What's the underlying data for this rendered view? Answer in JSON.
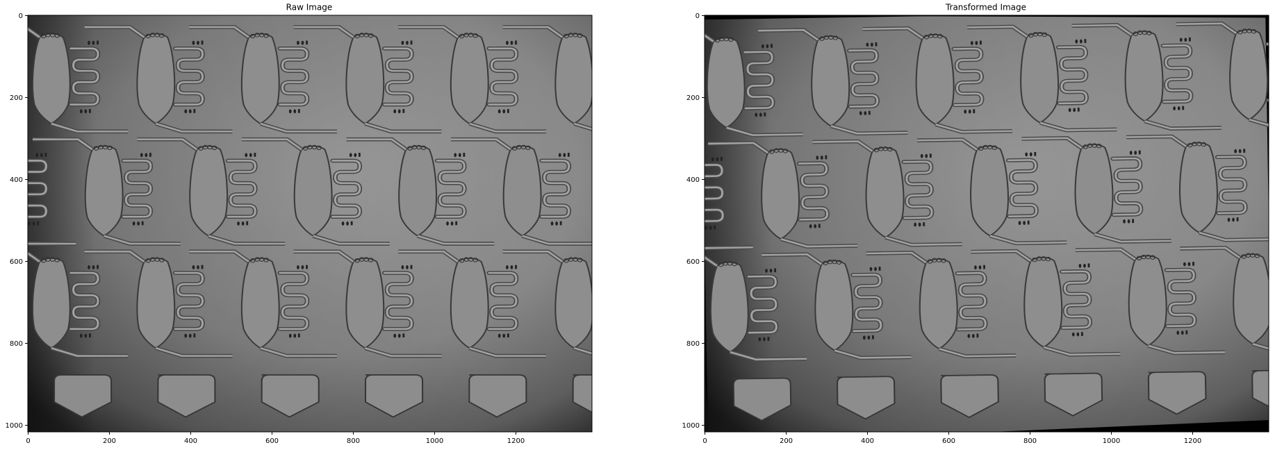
{
  "figure": {
    "panels": [
      {
        "id": "raw",
        "title": "Raw Image",
        "x_ticks": [
          "0",
          "200",
          "400",
          "600",
          "800",
          "1000",
          "1200"
        ],
        "y_ticks": [
          "0",
          "200",
          "400",
          "600",
          "800",
          "1000"
        ],
        "image_description": "grayscale brightfield micrograph of microfluidic chip with oval chambers connected by serpentine channels",
        "colors": {
          "image_base": "#7f7f7f",
          "dark_edge": "#2a2a2a",
          "channel": "#454545"
        }
      },
      {
        "id": "transformed",
        "title": "Transformed Image",
        "x_ticks": [
          "0",
          "200",
          "400",
          "600",
          "800",
          "1000",
          "1200"
        ],
        "y_ticks": [
          "0",
          "200",
          "400",
          "600",
          "800",
          "1000"
        ],
        "image_description": "same micrograph after geometric alignment transform; slight rotation leaves black wedges at top and bottom edges",
        "colors": {
          "image_base": "#7f7f7f",
          "dark_edge": "#000000",
          "channel": "#454545"
        }
      }
    ]
  }
}
